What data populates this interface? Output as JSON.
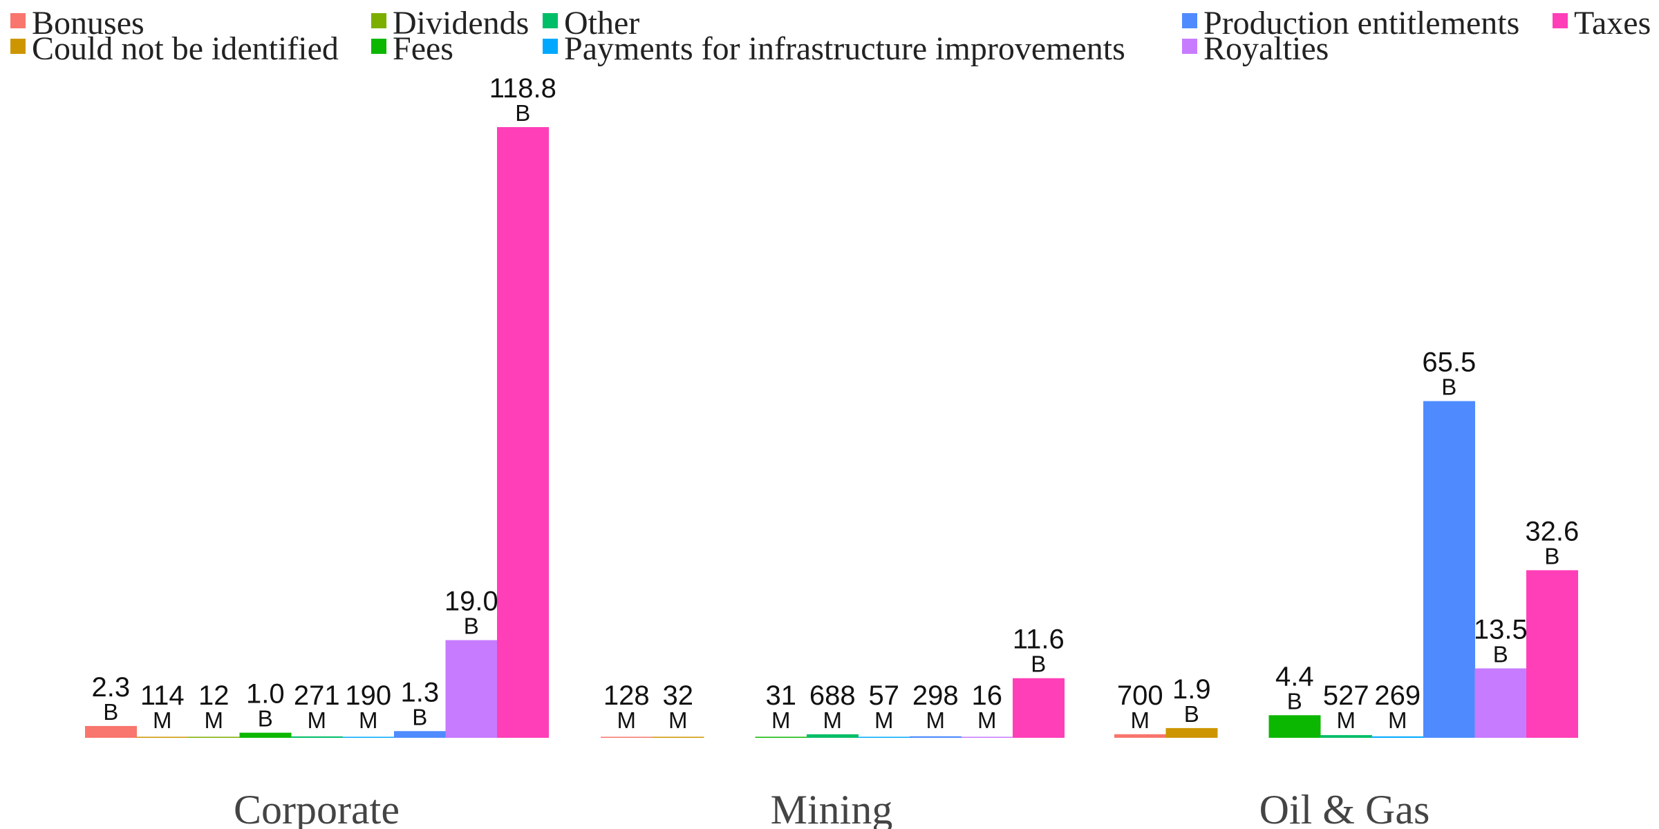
{
  "chart_data": {
    "type": "bar",
    "categories": [
      "Corporate",
      "Mining",
      "Oil & Gas"
    ],
    "ylim": [
      0,
      125000
    ],
    "grid": false,
    "legend_position": "top",
    "series": [
      {
        "name": "Bonuses",
        "color": "#F8766D",
        "values": [
          2300,
          128,
          700
        ],
        "labels": [
          [
            "2.3",
            "B"
          ],
          [
            "128",
            "M"
          ],
          [
            "700",
            "M"
          ]
        ]
      },
      {
        "name": "Could not be identified",
        "color": "#CD9600",
        "values": [
          114,
          32,
          1900
        ],
        "labels": [
          [
            "114",
            "M"
          ],
          [
            "32",
            "M"
          ],
          [
            "1.9",
            "B"
          ]
        ]
      },
      {
        "name": "Dividends",
        "color": "#7CAE00",
        "values": [
          12,
          null,
          null
        ],
        "labels": [
          [
            "12",
            "M"
          ],
          null,
          null
        ]
      },
      {
        "name": "Fees",
        "color": "#0CB702",
        "values": [
          1000,
          31,
          4400
        ],
        "labels": [
          [
            "1.0",
            "B"
          ],
          [
            "31",
            "M"
          ],
          [
            "4.4",
            "B"
          ]
        ]
      },
      {
        "name": "Other",
        "color": "#00BE67",
        "values": [
          271,
          688,
          527
        ],
        "labels": [
          [
            "271",
            "M"
          ],
          [
            "688",
            "M"
          ],
          [
            "527",
            "M"
          ]
        ]
      },
      {
        "name": "Payments for infrastructure improvements",
        "color": "#00A9FF",
        "values": [
          190,
          57,
          269
        ],
        "labels": [
          [
            "190",
            "M"
          ],
          [
            "57",
            "M"
          ],
          [
            "269",
            "M"
          ]
        ]
      },
      {
        "name": "Production entitlements",
        "color": "#4F8BFF",
        "values": [
          1300,
          298,
          65500
        ],
        "labels": [
          [
            "1.3",
            "B"
          ],
          [
            "298",
            "M"
          ],
          [
            "65.5",
            "B"
          ]
        ]
      },
      {
        "name": "Royalties",
        "color": "#C77CFF",
        "values": [
          19000,
          16,
          13500
        ],
        "labels": [
          [
            "19.0",
            "B"
          ],
          [
            "16",
            "M"
          ],
          [
            "13.5",
            "B"
          ]
        ]
      },
      {
        "name": "Taxes",
        "color": "#FF3FB8",
        "values": [
          118800,
          11600,
          32600
        ],
        "labels": [
          [
            "118.8",
            "B"
          ],
          [
            "11.6",
            "B"
          ],
          [
            "32.6",
            "B"
          ]
        ]
      }
    ]
  }
}
